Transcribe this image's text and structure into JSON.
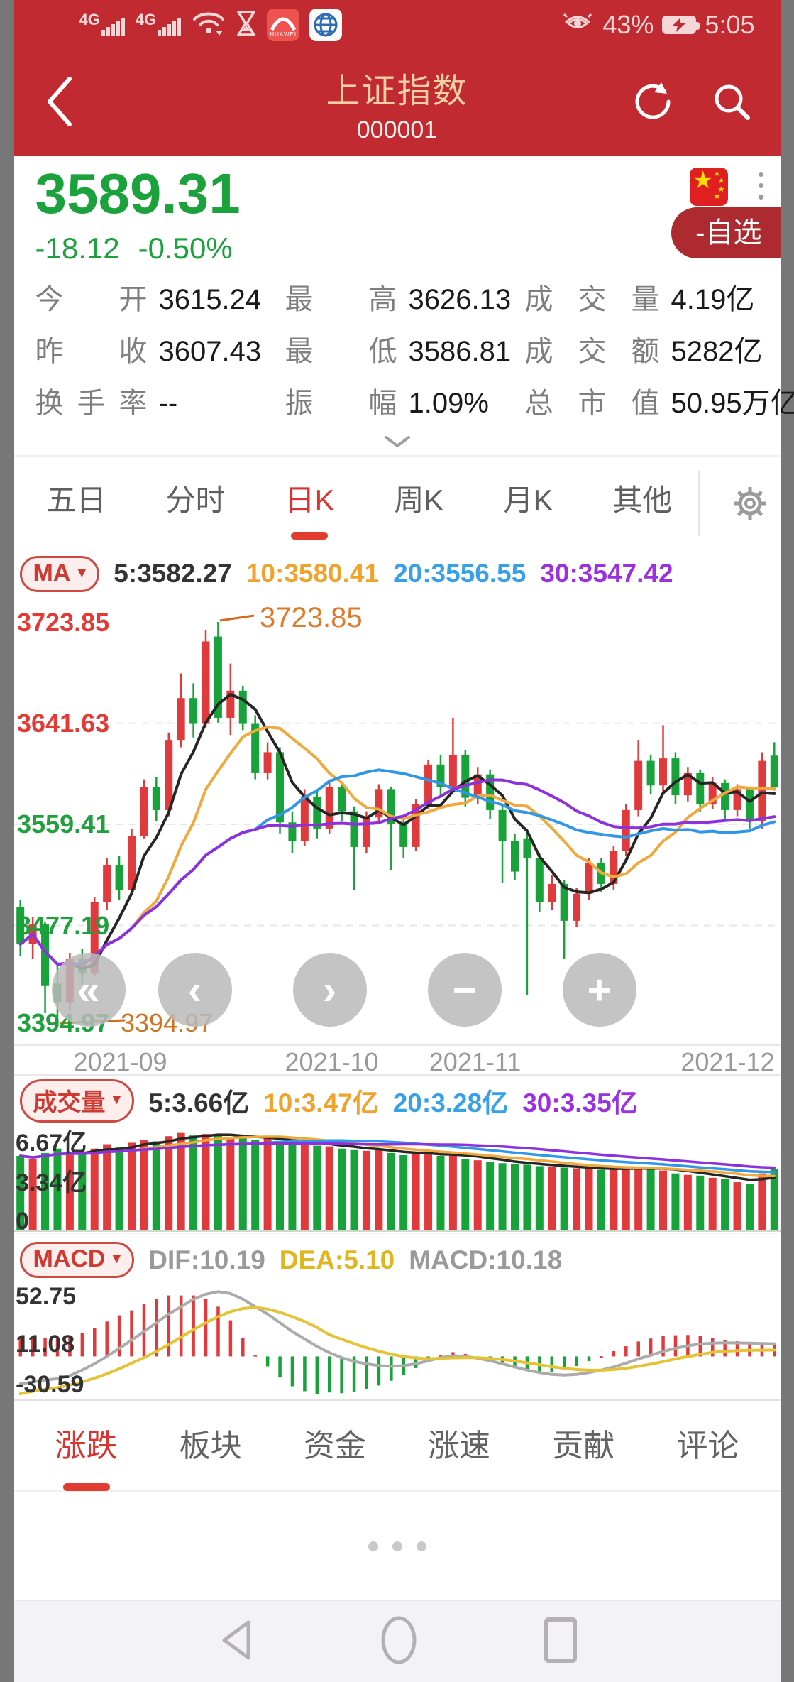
{
  "status_bar": {
    "network_label": "4G",
    "battery_pct": "43%",
    "time": "5:05"
  },
  "header": {
    "title": "上证指数",
    "code": "000001"
  },
  "quote": {
    "price": "3589.31",
    "change": "-18.12",
    "change_pct": "-0.50%",
    "watchlist": "-自选"
  },
  "stats": {
    "rows": [
      [
        {
          "label": "今开",
          "value": "3615.24"
        },
        {
          "label": "最高",
          "value": "3626.13"
        },
        {
          "label": "成交量",
          "value": "4.19亿"
        }
      ],
      [
        {
          "label": "昨收",
          "value": "3607.43"
        },
        {
          "label": "最低",
          "value": "3586.81"
        },
        {
          "label": "成交额",
          "value": "5282亿"
        }
      ],
      [
        {
          "label": "换手率",
          "value": "--"
        },
        {
          "label": "振幅",
          "value": "1.09%"
        },
        {
          "label": "总市值",
          "value": "50.95万亿"
        }
      ]
    ]
  },
  "kline_tabs": {
    "items": [
      "五日",
      "分时",
      "日K",
      "周K",
      "月K",
      "其他"
    ],
    "active": "日K"
  },
  "indicators": {
    "ma": {
      "pill": "MA",
      "v5": "5:3582.27",
      "v10": "10:3580.41",
      "v20": "20:3556.55",
      "v30": "30:3547.42"
    },
    "volume": {
      "pill": "成交量",
      "v5": "5:3.66亿",
      "v10": "10:3.47亿",
      "v20": "20:3.28亿",
      "v30": "30:3.35亿",
      "y_top": "6.67亿",
      "y_mid": "3.34亿",
      "y_zero": "0"
    },
    "macd": {
      "pill": "MACD",
      "dif": "DIF:10.19",
      "dea": "DEA:5.10",
      "macd": "MACD:10.18",
      "y_top": "52.75",
      "y_mid": "11.08",
      "y_bot": "-30.59"
    }
  },
  "main_chart": {
    "price_max": 3723.85,
    "price_min": 3394.97,
    "y_axis": [
      "3723.85",
      "3641.63",
      "3559.41",
      "3477.19",
      "3394.97"
    ],
    "x_axis": [
      "2021-09",
      "2021-10",
      "2021-11",
      "2021-12"
    ],
    "high_label": "3723.85",
    "low_label": "3394.97",
    "candles": [
      [
        3492,
        3498,
        3452,
        3462
      ],
      [
        3462,
        3484,
        3450,
        3478
      ],
      [
        3478,
        3480,
        3406,
        3428
      ],
      [
        3430,
        3446,
        3394.97,
        3415
      ],
      [
        3415,
        3455,
        3408,
        3450
      ],
      [
        3450,
        3458,
        3430,
        3438
      ],
      [
        3438,
        3500,
        3436,
        3496
      ],
      [
        3496,
        3532,
        3490,
        3526
      ],
      [
        3526,
        3534,
        3498,
        3506
      ],
      [
        3506,
        3556,
        3502,
        3550
      ],
      [
        3550,
        3596,
        3548,
        3590
      ],
      [
        3590,
        3598,
        3562,
        3571
      ],
      [
        3571,
        3634,
        3566,
        3628
      ],
      [
        3628,
        3682,
        3622,
        3662
      ],
      [
        3662,
        3674,
        3630,
        3641
      ],
      [
        3641,
        3717,
        3638,
        3708
      ],
      [
        3712,
        3723.85,
        3642,
        3646
      ],
      [
        3646,
        3690,
        3632,
        3668
      ],
      [
        3668,
        3672,
        3636,
        3641
      ],
      [
        3641,
        3648,
        3596,
        3601
      ],
      [
        3601,
        3626,
        3596,
        3618
      ],
      [
        3618,
        3622,
        3552,
        3561
      ],
      [
        3561,
        3570,
        3536,
        3546
      ],
      [
        3546,
        3588,
        3542,
        3582
      ],
      [
        3582,
        3586,
        3548,
        3556
      ],
      [
        3556,
        3596,
        3552,
        3590
      ],
      [
        3590,
        3594,
        3562,
        3570
      ],
      [
        3570,
        3574,
        3506,
        3541
      ],
      [
        3541,
        3570,
        3536,
        3565
      ],
      [
        3565,
        3592,
        3560,
        3588
      ],
      [
        3588,
        3590,
        3522,
        3560
      ],
      [
        3560,
        3566,
        3532,
        3541
      ],
      [
        3541,
        3580,
        3538,
        3576
      ],
      [
        3576,
        3612,
        3572,
        3608
      ],
      [
        3608,
        3616,
        3582,
        3590
      ],
      [
        3590,
        3646,
        3586,
        3616
      ],
      [
        3616,
        3620,
        3574,
        3581
      ],
      [
        3581,
        3606,
        3576,
        3600
      ],
      [
        3600,
        3604,
        3564,
        3571
      ],
      [
        3571,
        3576,
        3512,
        3546
      ],
      [
        3546,
        3552,
        3514,
        3521
      ],
      [
        3548,
        3556,
        3421,
        3532
      ],
      [
        3532,
        3536,
        3488,
        3496
      ],
      [
        3496,
        3518,
        3490,
        3511
      ],
      [
        3511,
        3514,
        3450,
        3481
      ],
      [
        3481,
        3508,
        3476,
        3503
      ],
      [
        3503,
        3532,
        3498,
        3528
      ],
      [
        3528,
        3532,
        3504,
        3511
      ],
      [
        3511,
        3542,
        3506,
        3538
      ],
      [
        3538,
        3576,
        3534,
        3571
      ],
      [
        3571,
        3628,
        3566,
        3611
      ],
      [
        3611,
        3616,
        3584,
        3591
      ],
      [
        3591,
        3640,
        3586,
        3613
      ],
      [
        3613,
        3618,
        3576,
        3583
      ],
      [
        3583,
        3606,
        3578,
        3601
      ],
      [
        3601,
        3604,
        3570,
        3576
      ],
      [
        3576,
        3598,
        3572,
        3593
      ],
      [
        3593,
        3596,
        3564,
        3571
      ],
      [
        3571,
        3592,
        3566,
        3588
      ],
      [
        3588,
        3590,
        3556,
        3562
      ],
      [
        3562,
        3618,
        3556,
        3611
      ],
      [
        3615.24,
        3626.13,
        3586.81,
        3589.31
      ]
    ]
  },
  "volume_data": [
    5.1,
    4.9,
    5.3,
    5.6,
    5.4,
    5.2,
    5.6,
    5.9,
    5.7,
    6.0,
    6.2,
    6.1,
    6.45,
    6.67,
    6.5,
    6.6,
    6.55,
    6.4,
    6.3,
    6.2,
    6.35,
    6.1,
    5.9,
    6.0,
    5.8,
    5.75,
    5.6,
    5.5,
    5.45,
    5.5,
    5.3,
    5.15,
    5.2,
    5.3,
    5.1,
    5.2,
    4.9,
    4.8,
    4.7,
    4.6,
    4.55,
    4.5,
    4.4,
    4.35,
    4.3,
    4.25,
    4.2,
    4.15,
    4.2,
    4.3,
    4.35,
    4.2,
    4.1,
    3.9,
    3.8,
    3.75,
    3.6,
    3.5,
    3.3,
    3.2,
    3.9,
    4.19
  ],
  "macd_data": {
    "dif": [
      -22,
      -20.5,
      -19,
      -18,
      -15.5,
      -11,
      -6,
      0,
      6.5,
      13,
      20,
      27,
      34,
      40,
      46,
      50,
      52,
      50.5,
      46,
      40,
      34,
      27,
      20,
      14,
      8,
      3,
      -1,
      -4,
      -6,
      -7.5,
      -8,
      -7.5,
      -6,
      -3.5,
      -1,
      0.5,
      0,
      -1.5,
      -3.5,
      -6,
      -8.5,
      -11,
      -13,
      -14.5,
      -15,
      -14.5,
      -13,
      -11,
      -8.5,
      -5.5,
      -2,
      1,
      4,
      6.5,
      8.5,
      10,
      10.6,
      10.9,
      10.8,
      10.6,
      10.4,
      10.19
    ],
    "dea": [
      -30,
      -28,
      -26.5,
      -25,
      -23,
      -20.5,
      -17.5,
      -14,
      -10,
      -5.5,
      -1,
      4,
      9.5,
      15.5,
      21.5,
      27,
      32,
      36,
      38.5,
      39.5,
      38,
      35.5,
      32,
      28,
      23.3,
      17.5,
      13.8,
      10.2,
      7,
      4.2,
      1.8,
      -0.1,
      -1.3,
      -1.8,
      -1.6,
      -1.2,
      -1,
      -1.1,
      -1.6,
      -2.5,
      -3.7,
      -5.2,
      -6.7,
      -8.3,
      -9.6,
      -10.6,
      -11.1,
      -11.1,
      -10.6,
      -9.6,
      -8,
      -6.2,
      -4.2,
      -2,
      -0.1,
      1.8,
      3.2,
      4.2,
      4.7,
      5,
      5.05,
      5.1
    ]
  },
  "bottom_tabs": {
    "items": [
      "涨跌",
      "板块",
      "资金",
      "涨速",
      "贡献",
      "评论"
    ],
    "active": "涨跌"
  },
  "colors": {
    "up": "#e03a3c",
    "down": "#17a23a",
    "ma5": "#262626",
    "ma10": "#f0a93c",
    "ma20": "#2f96e8",
    "ma30": "#8d30dd",
    "dif": "#ababab",
    "dea": "#e6c335",
    "axis_red": "#e23b35",
    "axis_green": "#1ea03c",
    "annotation": "#d2691e",
    "header_bg": "#c02a30"
  }
}
